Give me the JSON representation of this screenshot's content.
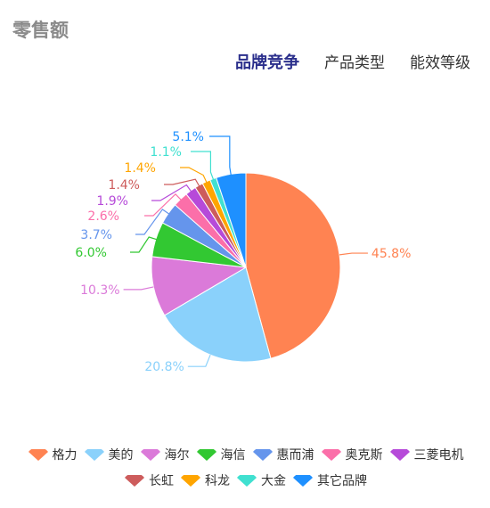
{
  "title": "零售额",
  "tabs": [
    {
      "label": "品牌竞争",
      "active": true
    },
    {
      "label": "产品类型",
      "active": false
    },
    {
      "label": "能效等级",
      "active": false
    }
  ],
  "chart_data": {
    "type": "pie",
    "slices": [
      {
        "name": "格力",
        "value": 45.8,
        "label": "45.8%",
        "color": "#ff8352"
      },
      {
        "name": "美的",
        "value": 20.8,
        "label": "20.8%",
        "color": "#8ad1fb"
      },
      {
        "name": "海尔",
        "value": 10.3,
        "label": "10.3%",
        "color": "#db7ad9"
      },
      {
        "name": "海信",
        "value": 6.0,
        "label": "6.0%",
        "color": "#32c832"
      },
      {
        "name": "惠而浦",
        "value": 3.7,
        "label": "3.7%",
        "color": "#6595ec"
      },
      {
        "name": "奥克斯",
        "value": 2.6,
        "label": "2.6%",
        "color": "#fb6fa9"
      },
      {
        "name": "三菱电机",
        "value": 1.9,
        "label": "1.9%",
        "color": "#b64ad9"
      },
      {
        "name": "长虹",
        "value": 1.4,
        "label": "1.4%",
        "color": "#cd5c5c"
      },
      {
        "name": "科龙",
        "value": 1.4,
        "label": "1.4%",
        "color": "#ffa500"
      },
      {
        "name": "大金",
        "value": 1.1,
        "label": "1.1%",
        "color": "#40e0d0"
      },
      {
        "name": "其它品牌",
        "value": 5.1,
        "label": "5.1%",
        "color": "#1e90ff"
      }
    ],
    "legend_position": "bottom"
  }
}
